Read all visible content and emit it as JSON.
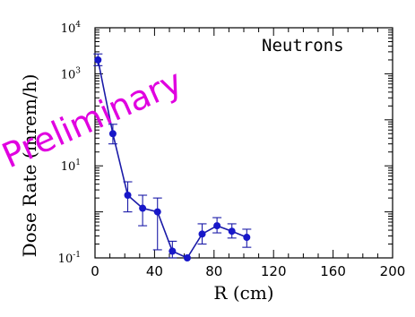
{
  "chart_data": {
    "type": "line",
    "title": "",
    "annotation": "Neutrons",
    "watermark": "Preliminary",
    "xlabel": "R (cm)",
    "ylabel": "Dose Rate (mrem/h)",
    "xlim": [
      0,
      200
    ],
    "ylim": [
      0.1,
      10000
    ],
    "yscale": "log",
    "xticks": [
      "0",
      "40",
      "80",
      "120",
      "160",
      "200"
    ],
    "yticks": [
      {
        "base": "10",
        "exp": "-1",
        "value": 0.1
      },
      {
        "base": "10",
        "exp": "1",
        "value": 10
      },
      {
        "base": "10",
        "exp": "3",
        "value": 1000
      },
      {
        "base": "10",
        "exp": "4",
        "value": 10000
      }
    ],
    "grid": false,
    "series": [
      {
        "color": "#1717c9",
        "points": [
          {
            "x": 2,
            "y": 2000,
            "lo": 1500,
            "hi": 2700
          },
          {
            "x": 12,
            "y": 50,
            "lo": 30,
            "hi": 80
          },
          {
            "x": 22,
            "y": 2.3,
            "lo": 1.0,
            "hi": 4.5
          },
          {
            "x": 32,
            "y": 1.2,
            "lo": 0.5,
            "hi": 2.3
          },
          {
            "x": 42,
            "y": 1.0,
            "lo": 0.15,
            "hi": 2.0
          },
          {
            "x": 52,
            "y": 0.14,
            "lo": 0.1,
            "hi": 0.23
          },
          {
            "x": 62,
            "y": 0.1,
            "lo": 0.1,
            "hi": 0.1
          },
          {
            "x": 72,
            "y": 0.33,
            "lo": 0.2,
            "hi": 0.55
          },
          {
            "x": 82,
            "y": 0.5,
            "lo": 0.35,
            "hi": 0.75
          },
          {
            "x": 92,
            "y": 0.38,
            "lo": 0.27,
            "hi": 0.55
          },
          {
            "x": 102,
            "y": 0.28,
            "lo": 0.17,
            "hi": 0.42
          }
        ]
      }
    ]
  }
}
